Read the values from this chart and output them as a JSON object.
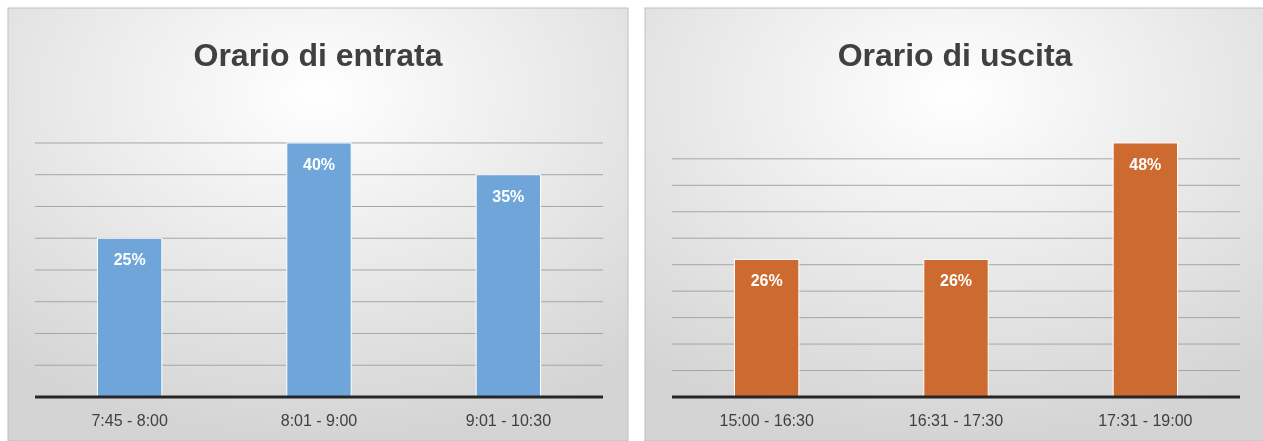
{
  "chart_data": [
    {
      "type": "bar",
      "title": "Orario di entrata",
      "categories": [
        "7:45 - 8:00",
        "8:01 - 9:00",
        "9:01 - 10:30"
      ],
      "values": [
        25,
        40,
        35
      ],
      "value_labels": [
        "25%",
        "40%",
        "35%"
      ],
      "color": "#6fa5d9",
      "grid": "y",
      "tick_labels": "x"
    },
    {
      "type": "bar",
      "title": "Orario di uscita",
      "categories": [
        "15:00 - 16:30",
        "16:31 - 17:30",
        "17:31 - 19:00"
      ],
      "values": [
        26,
        26,
        48
      ],
      "value_labels": [
        "26%",
        "26%",
        "48%"
      ],
      "color": "#cc6a30",
      "grid": "y",
      "tick_labels": "x"
    }
  ]
}
